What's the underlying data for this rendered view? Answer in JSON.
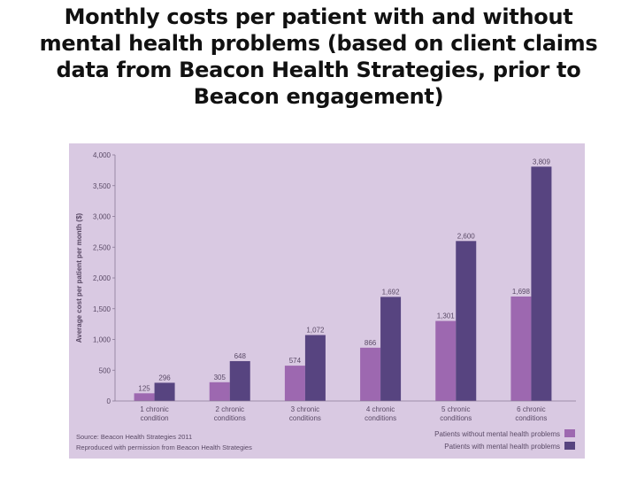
{
  "title": "Monthly costs per patient with and without mental health problems (based on client claims data from Beacon Health Strategies, prior to Beacon engagement)",
  "colors": {
    "panel": "#d9c9e2",
    "without": "#9d68b0",
    "with": "#574480"
  },
  "chart_data": {
    "type": "bar",
    "ylabel": "Average cost per patient per month ($)",
    "ylim": [
      0,
      4000
    ],
    "yticks": [
      "0",
      "500",
      "1,000",
      "1,500",
      "2,000",
      "2,500",
      "3,000",
      "3,500",
      "4,000"
    ],
    "ytick_values": [
      0,
      500,
      1000,
      1500,
      2000,
      2500,
      3000,
      3500,
      4000
    ],
    "categories": [
      [
        "1 chronic",
        "condition"
      ],
      [
        "2 chronic",
        "conditions"
      ],
      [
        "3 chronic",
        "conditions"
      ],
      [
        "4 chronic",
        "conditions"
      ],
      [
        "5 chronic",
        "conditions"
      ],
      [
        "6 chronic",
        "conditions"
      ]
    ],
    "series": [
      {
        "name": "Patients without mental health problems",
        "values": [
          125,
          305,
          574,
          866,
          1301,
          1698
        ],
        "labels": [
          "125",
          "305",
          "574",
          "866",
          "1,301",
          "1,698"
        ]
      },
      {
        "name": "Patients with mental health problems",
        "values": [
          296,
          648,
          1072,
          1692,
          2600,
          3809
        ],
        "labels": [
          "296",
          "648",
          "1,072",
          "1,692",
          "2,600",
          "3,809"
        ]
      }
    ],
    "legend_position": "bottom-right",
    "grid": false,
    "source": "Source: Beacon Health Strategies 2011",
    "reproduced": "Reproduced with permission from Beacon Health Strategies"
  }
}
